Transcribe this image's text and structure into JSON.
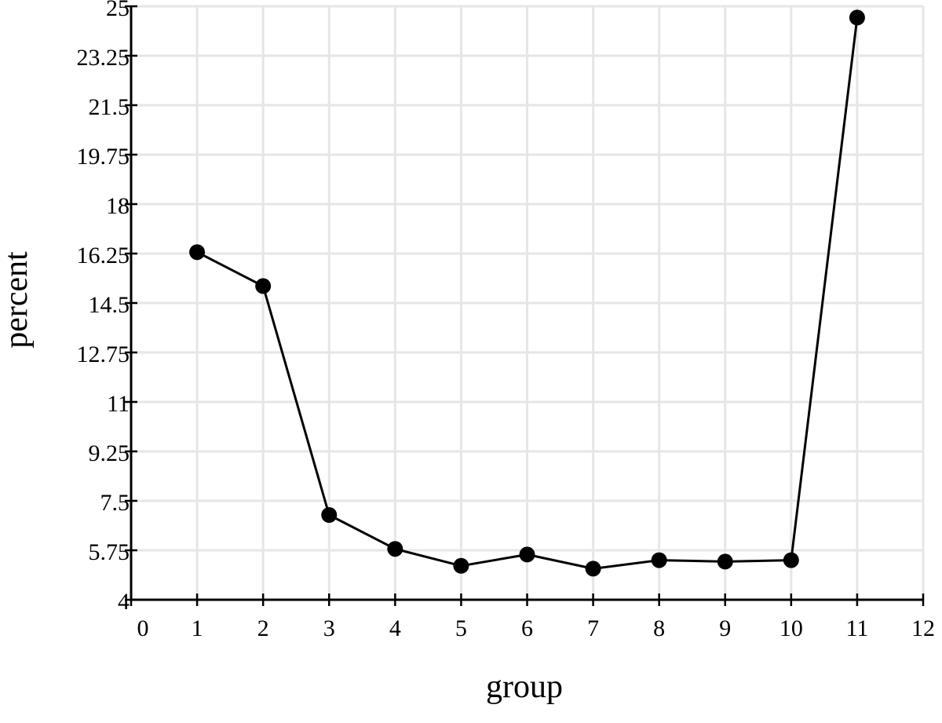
{
  "chart_data": {
    "type": "line",
    "title": "",
    "xlabel": "group",
    "ylabel": "percent",
    "xlim": [
      0,
      12
    ],
    "ylim": [
      4,
      25
    ],
    "x_ticks": [
      0,
      1,
      2,
      3,
      4,
      5,
      6,
      7,
      8,
      9,
      10,
      11,
      12
    ],
    "y_ticks": [
      4,
      5.75,
      7.5,
      9.25,
      11,
      12.75,
      14.5,
      16.25,
      18,
      19.75,
      21.5,
      23.25,
      25
    ],
    "x_tick_labels": [
      "0",
      "1",
      "2",
      "3",
      "4",
      "5",
      "6",
      "7",
      "8",
      "9",
      "10",
      "11",
      "12"
    ],
    "y_tick_labels": [
      "4",
      "5.75",
      "7.5",
      "9.25",
      "11",
      "12.75",
      "14.5",
      "16.25",
      "18",
      "19.75",
      "21.5",
      "23.25",
      "25"
    ],
    "grid": true,
    "line_color": "#000000",
    "grid_color": "#e6e6e6",
    "series": [
      {
        "x": [
          1,
          2,
          3,
          4,
          5,
          6,
          7,
          8,
          9,
          10,
          11
        ],
        "y": [
          16.3,
          15.1,
          7.0,
          5.8,
          5.2,
          5.6,
          5.1,
          5.4,
          5.35,
          5.4,
          24.6
        ]
      }
    ]
  }
}
